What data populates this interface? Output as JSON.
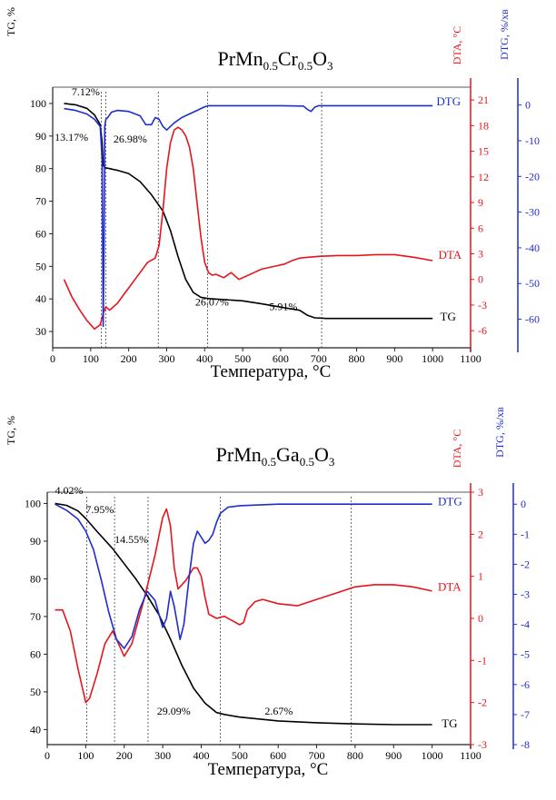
{
  "colors": {
    "tg": "#000000",
    "dta": "#e8141c",
    "dtg": "#1f2dcc",
    "axis": "#222222",
    "guide": "#444444"
  },
  "chart_data": [
    {
      "type": "line",
      "title": "PrMn0.5Cr0.5O3",
      "formula": [
        {
          "t": "PrMn",
          "sub": false
        },
        {
          "t": "0.5",
          "sub": true
        },
        {
          "t": "Cr",
          "sub": false
        },
        {
          "t": "0.5",
          "sub": true
        },
        {
          "t": "O",
          "sub": false
        },
        {
          "t": "3",
          "sub": true
        }
      ],
      "xlabel": "Температура, °C",
      "xlim": [
        0,
        1100
      ],
      "xticks": [
        0,
        100,
        200,
        300,
        400,
        500,
        600,
        700,
        800,
        900,
        1000,
        1100
      ],
      "axes": {
        "tg": {
          "label": "TG, %",
          "lim": [
            25,
            105
          ],
          "ticks": [
            30,
            40,
            50,
            60,
            70,
            80,
            90,
            100
          ]
        },
        "dta": {
          "label": "DTA, °C",
          "lim": [
            -8,
            22.5
          ],
          "ticks": [
            -6,
            -3,
            0,
            3,
            6,
            9,
            12,
            15,
            18,
            21
          ]
        },
        "dtg": {
          "label": "DTG, %/хв",
          "lim": [
            -68,
            5
          ],
          "ticks": [
            0,
            -10,
            -20,
            -30,
            -40,
            -50,
            -60
          ]
        }
      },
      "series": [
        {
          "name": "TG",
          "axis": "tg",
          "x": [
            30,
            60,
            90,
            110,
            125,
            130,
            133,
            138,
            150,
            170,
            200,
            230,
            260,
            290,
            310,
            330,
            350,
            370,
            390,
            410,
            450,
            500,
            550,
            600,
            650,
            670,
            690,
            720,
            800,
            900,
            1000
          ],
          "y": [
            100,
            99.6,
            98.5,
            96.5,
            93.5,
            88,
            81,
            80.3,
            80,
            79.5,
            78.5,
            76,
            72,
            67,
            61,
            53,
            46,
            42,
            40.5,
            40.1,
            39.8,
            39.4,
            38.5,
            37.5,
            36.5,
            35,
            34.2,
            34,
            34,
            34,
            34
          ]
        },
        {
          "name": "DTA",
          "axis": "dta",
          "x": [
            30,
            50,
            70,
            90,
            110,
            125,
            133,
            140,
            150,
            170,
            200,
            230,
            250,
            270,
            280,
            290,
            300,
            310,
            320,
            330,
            340,
            350,
            360,
            370,
            380,
            390,
            400,
            410,
            420,
            430,
            450,
            470,
            490,
            510,
            530,
            550,
            580,
            610,
            630,
            650,
            700,
            750,
            800,
            850,
            900,
            950,
            1000
          ],
          "y": [
            0,
            -2,
            -3.5,
            -4.8,
            -5.8,
            -5.3,
            -4,
            -3.2,
            -3.6,
            -2.8,
            -1,
            0.8,
            2,
            2.5,
            4,
            8,
            13,
            16,
            17.5,
            17.8,
            17.5,
            16.8,
            15.5,
            13,
            9,
            5,
            2,
            0.8,
            0.5,
            0.6,
            0.2,
            0.8,
            0,
            0.4,
            0.8,
            1.2,
            1.5,
            1.8,
            2.2,
            2.5,
            2.7,
            2.8,
            2.8,
            2.9,
            2.9,
            2.6,
            2.2
          ]
        },
        {
          "name": "DTG",
          "axis": "dtg",
          "x": [
            30,
            60,
            90,
            110,
            125,
            130,
            133,
            135,
            137,
            140,
            145,
            155,
            170,
            200,
            230,
            245,
            260,
            270,
            280,
            290,
            300,
            310,
            320,
            340,
            360,
            380,
            400,
            410,
            450,
            500,
            600,
            660,
            670,
            680,
            690,
            700,
            800,
            900,
            1000
          ],
          "y": [
            -1,
            -1.5,
            -2.5,
            -4,
            -6,
            -15,
            -62,
            -40,
            -6,
            -4,
            -3.5,
            -2,
            -1.5,
            -1.8,
            -3,
            -5.5,
            -5.5,
            -3.5,
            -4,
            -6,
            -7,
            -6,
            -5,
            -3.5,
            -2.5,
            -1.5,
            -0.5,
            -0.2,
            -0.2,
            -0.2,
            -0.2,
            -0.3,
            -1.2,
            -1.8,
            -0.6,
            -0.2,
            -0.2,
            -0.2,
            -0.2
          ]
        }
      ],
      "series_labels": [
        {
          "text": "DTG",
          "color": "dtg",
          "x": 1010,
          "axis": "tg",
          "y": 100.5
        },
        {
          "text": "DTA",
          "color": "dta",
          "x": 1015,
          "axis": "tg",
          "y": 53.5
        },
        {
          "text": "TG",
          "color": "tg",
          "x": 1020,
          "axis": "tg",
          "y": 34.5
        }
      ],
      "guides": [
        128,
        140,
        278,
        408,
        708
      ],
      "annotations": [
        {
          "text": "7.12%",
          "x": 50,
          "y": 102.5
        },
        {
          "text": "13.17%",
          "x": 5,
          "y": 88.5
        },
        {
          "text": "26.98%",
          "x": 160,
          "y": 88
        },
        {
          "text": "26.07%",
          "x": 375,
          "y": 38
        },
        {
          "text": "5.91%",
          "x": 570,
          "y": 36.5
        }
      ]
    },
    {
      "type": "line",
      "title": "PrMn0.5Ga0.5O3",
      "formula": [
        {
          "t": "PrMn",
          "sub": false
        },
        {
          "t": "0.5",
          "sub": true
        },
        {
          "t": "Ga",
          "sub": false
        },
        {
          "t": "0.5",
          "sub": true
        },
        {
          "t": "O",
          "sub": false
        },
        {
          "t": "3",
          "sub": true
        }
      ],
      "xlabel": "Температура, °C",
      "xlim": [
        0,
        1100
      ],
      "xticks": [
        0,
        100,
        200,
        300,
        400,
        500,
        600,
        700,
        800,
        900,
        1000,
        1100
      ],
      "axes": {
        "tg": {
          "label": "TG, %",
          "lim": [
            36,
            103
          ],
          "ticks": [
            40,
            50,
            60,
            70,
            80,
            90,
            100
          ]
        },
        "dta": {
          "label": "DTA, °C",
          "lim": [
            -3,
            3
          ],
          "ticks": [
            -3,
            -2,
            -1,
            0,
            1,
            2,
            3
          ]
        },
        "dtg": {
          "label": "DTG, %/хв",
          "lim": [
            -8,
            0.4
          ],
          "ticks": [
            0,
            -1,
            -2,
            -3,
            -4,
            -5,
            -6,
            -7,
            -8
          ]
        }
      },
      "series": [
        {
          "name": "TG",
          "axis": "tg",
          "x": [
            20,
            50,
            80,
            100,
            130,
            170,
            200,
            230,
            260,
            290,
            320,
            350,
            380,
            410,
            440,
            460,
            500,
            550,
            600,
            700,
            800,
            900,
            1000
          ],
          "y": [
            100,
            99.5,
            98,
            96,
            92.5,
            88,
            84,
            80,
            75.5,
            70.5,
            64,
            57,
            51,
            47,
            44.5,
            44,
            43.3,
            42.8,
            42.3,
            41.8,
            41.5,
            41.3,
            41.3
          ]
        },
        {
          "name": "DTA",
          "axis": "dta",
          "x": [
            20,
            40,
            60,
            80,
            100,
            110,
            130,
            150,
            170,
            180,
            200,
            220,
            250,
            280,
            300,
            310,
            320,
            330,
            340,
            360,
            380,
            390,
            400,
            410,
            420,
            440,
            460,
            480,
            500,
            510,
            520,
            540,
            560,
            600,
            650,
            700,
            750,
            800,
            850,
            900,
            950,
            1000
          ],
          "y": [
            0.2,
            0.2,
            -0.3,
            -1.2,
            -2,
            -1.9,
            -1.3,
            -0.6,
            -0.3,
            -0.5,
            -0.9,
            -0.6,
            0.4,
            1.5,
            2.4,
            2.6,
            2.2,
            1.2,
            0.7,
            0.9,
            1.2,
            1.2,
            1.0,
            0.5,
            0.1,
            0,
            0.05,
            -0.05,
            -0.15,
            -0.1,
            0.2,
            0.4,
            0.45,
            0.35,
            0.3,
            0.45,
            0.6,
            0.75,
            0.8,
            0.8,
            0.75,
            0.65
          ]
        },
        {
          "name": "DTG",
          "axis": "dtg",
          "x": [
            20,
            50,
            80,
            100,
            120,
            140,
            160,
            180,
            200,
            220,
            240,
            260,
            280,
            300,
            310,
            320,
            330,
            345,
            355,
            370,
            380,
            390,
            400,
            410,
            420,
            430,
            440,
            450,
            470,
            500,
            600,
            700,
            800,
            900,
            1000
          ],
          "y": [
            0,
            -0.2,
            -0.5,
            -0.9,
            -1.5,
            -2.5,
            -3.6,
            -4.5,
            -4.8,
            -4.4,
            -3.5,
            -2.9,
            -3.2,
            -4.1,
            -3.8,
            -2.9,
            -3.4,
            -4.5,
            -4.0,
            -2.3,
            -1.3,
            -0.9,
            -1.1,
            -1.3,
            -1.2,
            -1.0,
            -0.6,
            -0.3,
            -0.1,
            -0.05,
            0,
            0,
            0,
            0,
            0
          ]
        }
      ],
      "series_labels": [
        {
          "text": "DTG",
          "color": "dtg",
          "x": 1015,
          "axis": "tg",
          "y": 100.5
        },
        {
          "text": "DTA",
          "color": "dta",
          "x": 1015,
          "axis": "tg",
          "y": 77.8
        },
        {
          "text": "TG",
          "color": "tg",
          "x": 1025,
          "axis": "tg",
          "y": 41.5
        }
      ],
      "guides": [
        103,
        175,
        262,
        450,
        790
      ],
      "annotations": [
        {
          "text": "4.02%",
          "x": 20,
          "y": 102.5
        },
        {
          "text": "7.95%",
          "x": 100,
          "y": 97.5
        },
        {
          "text": "14.55%",
          "x": 175,
          "y": 89.5
        },
        {
          "text": "29.09%",
          "x": 285,
          "y": 44
        },
        {
          "text": "2.67%",
          "x": 565,
          "y": 44
        }
      ]
    }
  ]
}
